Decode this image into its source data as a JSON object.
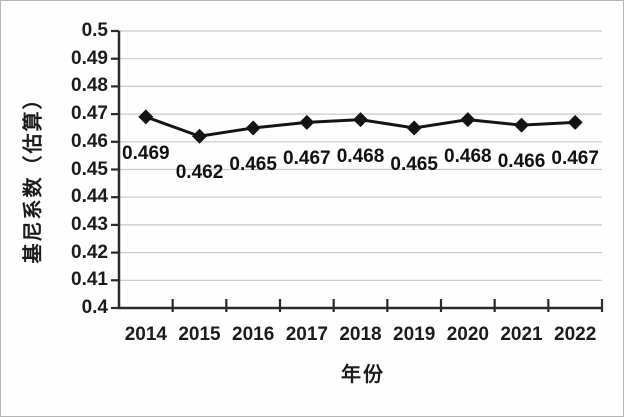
{
  "chart_data": {
    "type": "line",
    "title": "",
    "xlabel": "年份",
    "ylabel": "基尼系数（估算）",
    "x": [
      "2014",
      "2015",
      "2016",
      "2017",
      "2018",
      "2019",
      "2020",
      "2021",
      "2022"
    ],
    "series": [
      {
        "name": "基尼系数（估算）",
        "values": [
          0.469,
          0.462,
          0.465,
          0.467,
          0.468,
          0.465,
          0.468,
          0.466,
          0.467
        ],
        "data_labels": [
          "0.469",
          "0.462",
          "0.465",
          "0.467",
          "0.468",
          "0.465",
          "0.468",
          "0.466",
          "0.467"
        ]
      }
    ],
    "ylim": [
      0.4,
      0.5
    ],
    "ytick_labels": [
      "0.5",
      "0.49",
      "0.48",
      "0.47",
      "0.46",
      "0.45",
      "0.44",
      "0.43",
      "0.42",
      "0.41",
      "0.4"
    ],
    "grid": "horizontal",
    "legend_position": "none",
    "marker": "diamond",
    "colors": {
      "line": "#141414",
      "marker": "#141414",
      "grid": "#c9c9c9",
      "axis": "#2b2b2b",
      "text": "#1c1c1c",
      "background": "#fefefe",
      "frame_border": "#b5b5b5"
    }
  }
}
